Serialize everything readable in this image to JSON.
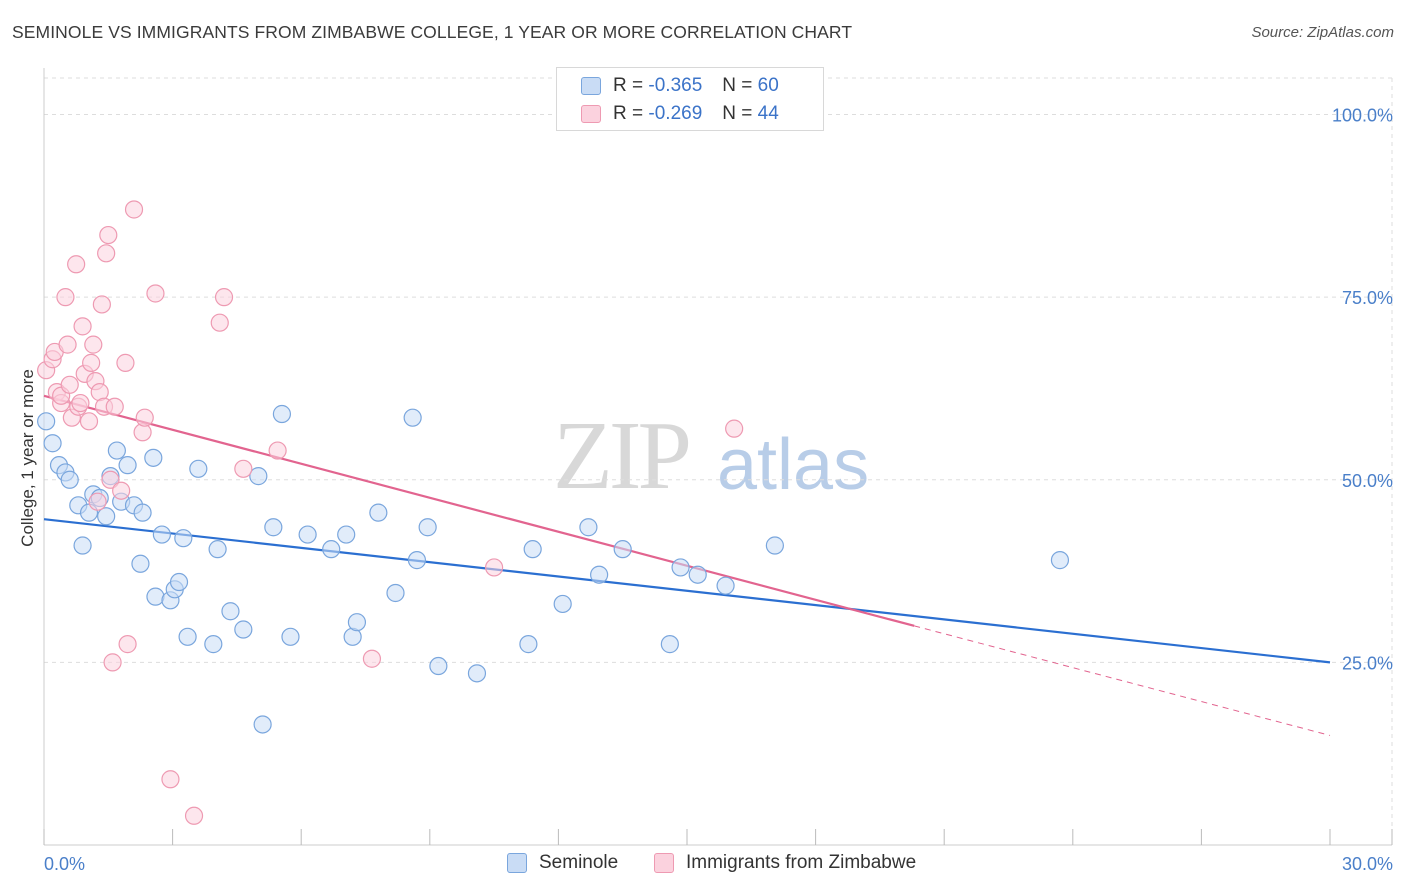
{
  "title": "SEMINOLE VS IMMIGRANTS FROM ZIMBABWE COLLEGE, 1 YEAR OR MORE CORRELATION CHART",
  "source": "Source: ZipAtlas.com",
  "watermark": {
    "zip": "ZIP",
    "atlas": "atlas"
  },
  "legend_top": {
    "rows": [
      {
        "r_label": "R =",
        "r_value": "-0.365",
        "n_label": "N =",
        "n_value": "60"
      },
      {
        "r_label": "R =",
        "r_value": "-0.269",
        "n_label": "N =",
        "n_value": "44"
      }
    ]
  },
  "legend_bottom": {
    "items": [
      "Seminole",
      "Immigrants from Zimbabwe"
    ]
  },
  "colors": {
    "seminole_fill": "#c9dcf5",
    "seminole_stroke": "#7aa6dd",
    "seminole_line": "#2b6fd1",
    "zimbabwe_fill": "#fbd2de",
    "zimbabwe_stroke": "#ee9ab2",
    "zimbabwe_line": "#e2648f",
    "tick_text": "#4a7fc9",
    "grid": "#dddddd"
  },
  "chart_data": {
    "type": "scatter",
    "title": "SEMINOLE VS IMMIGRANTS FROM ZIMBABWE COLLEGE, 1 YEAR OR MORE CORRELATION CHART",
    "xlabel": "",
    "ylabel": "College, 1 year or more",
    "xlim": [
      0,
      30
    ],
    "ylim": [
      0,
      105
    ],
    "x_tick_labels": [
      "0.0%",
      "30.0%"
    ],
    "y_ticks": [
      25,
      50,
      75,
      100
    ],
    "y_tick_labels": [
      "25.0%",
      "50.0%",
      "75.0%",
      "100.0%"
    ],
    "grid": true,
    "legend_position": "top-center",
    "series": [
      {
        "name": "Seminole",
        "R": -0.365,
        "N": 60,
        "trend": {
          "x0": 0,
          "y0": 44.6,
          "x1": 30,
          "y1": 25.0
        },
        "points": [
          [
            0.05,
            58
          ],
          [
            0.2,
            55
          ],
          [
            0.35,
            52
          ],
          [
            0.5,
            51
          ],
          [
            0.6,
            50
          ],
          [
            0.8,
            46.5
          ],
          [
            0.9,
            41
          ],
          [
            1.05,
            45.5
          ],
          [
            1.15,
            48
          ],
          [
            1.3,
            47.5
          ],
          [
            1.45,
            45
          ],
          [
            1.55,
            50.5
          ],
          [
            1.7,
            54
          ],
          [
            1.8,
            47
          ],
          [
            1.95,
            52
          ],
          [
            2.1,
            46.5
          ],
          [
            2.3,
            45.5
          ],
          [
            2.25,
            38.5
          ],
          [
            2.55,
            53
          ],
          [
            2.6,
            34
          ],
          [
            2.75,
            42.5
          ],
          [
            2.95,
            33.5
          ],
          [
            3.05,
            35
          ],
          [
            3.15,
            36
          ],
          [
            3.25,
            42
          ],
          [
            3.35,
            28.5
          ],
          [
            3.6,
            51.5
          ],
          [
            3.95,
            27.5
          ],
          [
            4.05,
            40.5
          ],
          [
            4.35,
            32
          ],
          [
            4.65,
            29.5
          ],
          [
            5.0,
            50.5
          ],
          [
            5.1,
            16.5
          ],
          [
            5.35,
            43.5
          ],
          [
            5.55,
            59
          ],
          [
            5.75,
            28.5
          ],
          [
            6.15,
            42.5
          ],
          [
            6.7,
            40.5
          ],
          [
            7.05,
            42.5
          ],
          [
            7.2,
            28.5
          ],
          [
            7.3,
            30.5
          ],
          [
            7.8,
            45.5
          ],
          [
            8.2,
            34.5
          ],
          [
            8.6,
            58.5
          ],
          [
            8.7,
            39
          ],
          [
            8.95,
            43.5
          ],
          [
            9.2,
            24.5
          ],
          [
            10.1,
            23.5
          ],
          [
            11.3,
            27.5
          ],
          [
            11.4,
            40.5
          ],
          [
            12.1,
            33
          ],
          [
            12.7,
            43.5
          ],
          [
            12.95,
            37
          ],
          [
            13.5,
            40.5
          ],
          [
            14.6,
            27.5
          ],
          [
            14.85,
            38
          ],
          [
            15.25,
            37
          ],
          [
            15.9,
            35.5
          ],
          [
            17.05,
            41
          ],
          [
            23.7,
            39
          ]
        ]
      },
      {
        "name": "Immigrants from Zimbabwe",
        "R": -0.269,
        "N": 44,
        "trend": {
          "x0": 0,
          "y0": 61.5,
          "x1": 20.3,
          "y1": 30.0
        },
        "trend_dashed": {
          "x0": 20.3,
          "y0": 30.0,
          "x1": 30,
          "y1": 15.0
        },
        "points": [
          [
            0.05,
            65
          ],
          [
            0.2,
            66.5
          ],
          [
            0.25,
            67.5
          ],
          [
            0.3,
            62
          ],
          [
            0.4,
            60.5
          ],
          [
            0.4,
            61.5
          ],
          [
            0.5,
            75
          ],
          [
            0.55,
            68.5
          ],
          [
            0.6,
            63
          ],
          [
            0.65,
            58.5
          ],
          [
            0.75,
            79.5
          ],
          [
            0.8,
            60
          ],
          [
            0.85,
            60.5
          ],
          [
            0.9,
            71
          ],
          [
            0.95,
            64.5
          ],
          [
            1.05,
            58
          ],
          [
            1.1,
            66
          ],
          [
            1.15,
            68.5
          ],
          [
            1.2,
            63.5
          ],
          [
            1.25,
            47
          ],
          [
            1.3,
            62
          ],
          [
            1.4,
            60
          ],
          [
            1.45,
            81
          ],
          [
            1.5,
            83.5
          ],
          [
            1.55,
            50
          ],
          [
            1.65,
            60
          ],
          [
            1.8,
            48.5
          ],
          [
            1.9,
            66
          ],
          [
            1.95,
            27.5
          ],
          [
            1.6,
            25
          ],
          [
            2.1,
            87
          ],
          [
            2.3,
            56.5
          ],
          [
            2.35,
            58.5
          ],
          [
            2.6,
            75.5
          ],
          [
            2.95,
            9
          ],
          [
            3.5,
            4
          ],
          [
            4.1,
            71.5
          ],
          [
            4.2,
            75
          ],
          [
            4.65,
            51.5
          ],
          [
            5.45,
            54
          ],
          [
            7.65,
            25.5
          ],
          [
            10.5,
            38
          ],
          [
            16.1,
            57
          ],
          [
            1.35,
            74
          ]
        ]
      }
    ]
  }
}
